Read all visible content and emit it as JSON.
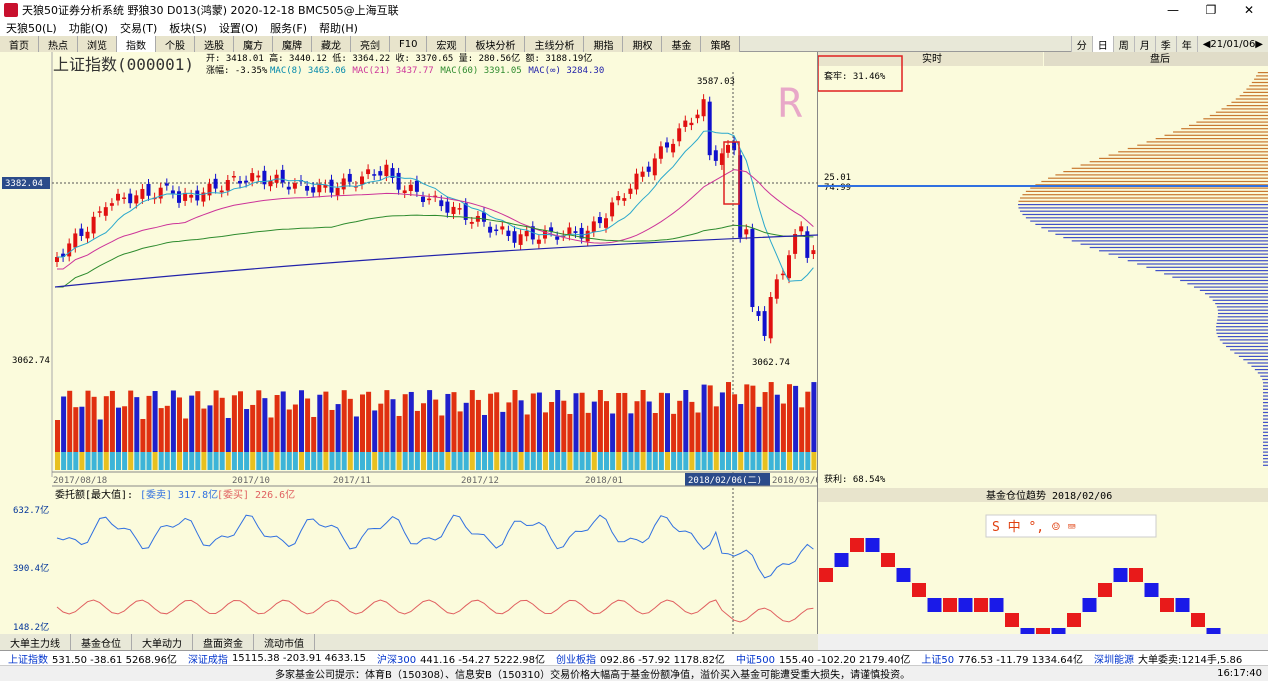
{
  "window": {
    "title": "天狼50证券分析系统 野狼30 D013(鸿蒙) 2020-12-18 BMC505@上海互联"
  },
  "menu": [
    "天狼50(L)",
    "功能(Q)",
    "交易(T)",
    "板块(S)",
    "设置(O)",
    "服务(F)",
    "帮助(H)"
  ],
  "tabs": [
    "首页",
    "热点",
    "浏览",
    "指数",
    "个股",
    "选股",
    "魔方",
    "魔牌",
    "藏龙",
    "亮剑",
    "F10",
    "宏观",
    "板块分析",
    "主线分析",
    "期指",
    "期权",
    "基金",
    "策略"
  ],
  "active_tab": "指数",
  "periods": [
    "分",
    "日",
    "周",
    "月",
    "季",
    "年",
    "◀21/01/06▶"
  ],
  "active_period": "日",
  "stock": {
    "name": "上证指数(000001)",
    "ohlc_line": "开: 3418.01 高: 3440.12 低: 3364.22 收: 3370.65 量: 280.56亿 额: 3188.19亿",
    "change_label": "涨幅: -3.35%",
    "ma_labels": [
      "MAC(8) 3463.06",
      "MAC(21) 3437.77",
      "MAC(60) 3391.05",
      "MAC(∞) 3284.30"
    ],
    "high_label": "3587.03",
    "low_label": "3062.74",
    "cursor_price": "3382.04",
    "axis_left_low": "3062.74",
    "watermark": "R"
  },
  "xaxis": [
    "2017/08/18",
    "2017/10",
    "2017/11",
    "2017/12",
    "2018/01",
    "2018/02/06(二)",
    "2018/03/05"
  ],
  "indicator": {
    "title": "委托额[最大值]:",
    "sell": "[委卖] 317.8亿",
    "buy": "[委买] 226.6亿",
    "axis": [
      "632.7亿",
      "390.4亿",
      "148.2亿"
    ]
  },
  "right": {
    "tabs": [
      "实时",
      "盘后"
    ],
    "trap_label": "套牢: 31.46%",
    "profit_label": "获利: 68.54%",
    "level1": "25.01",
    "level2": "74.99",
    "fund_title": "基金仓位趋势 2018/02/06"
  },
  "bottom_tabs": [
    "大单主力线",
    "基金仓位",
    "大单动力",
    "盘面资金",
    "流动市值"
  ],
  "ticker": [
    {
      "k": "上证指数",
      "v": "531.50 -38.61 5268.96亿"
    },
    {
      "k": "深证成指",
      "v": "15115.38 -203.91 4633.15"
    },
    {
      "k": "沪深300",
      "v": "441.16 -54.27 5222.98亿"
    },
    {
      "k": "创业板指",
      "v": "092.86 -57.92 1178.82亿"
    },
    {
      "k": "中证500",
      "v": "155.40 -102.20 2179.40亿"
    },
    {
      "k": "上证50",
      "v": "776.53 -11.79 1334.64亿"
    },
    {
      "k": "深圳能源",
      "v": "大单委卖:1214手,5.86"
    }
  ],
  "status": {
    "message": "多家基金公司提示：体育B（150308）、信息安B（150310）交易价格大幅高于基金份额净值，溢价买入基金可能遭受重大损失，请谨慎投资。",
    "clock": "16:17:40"
  }
}
